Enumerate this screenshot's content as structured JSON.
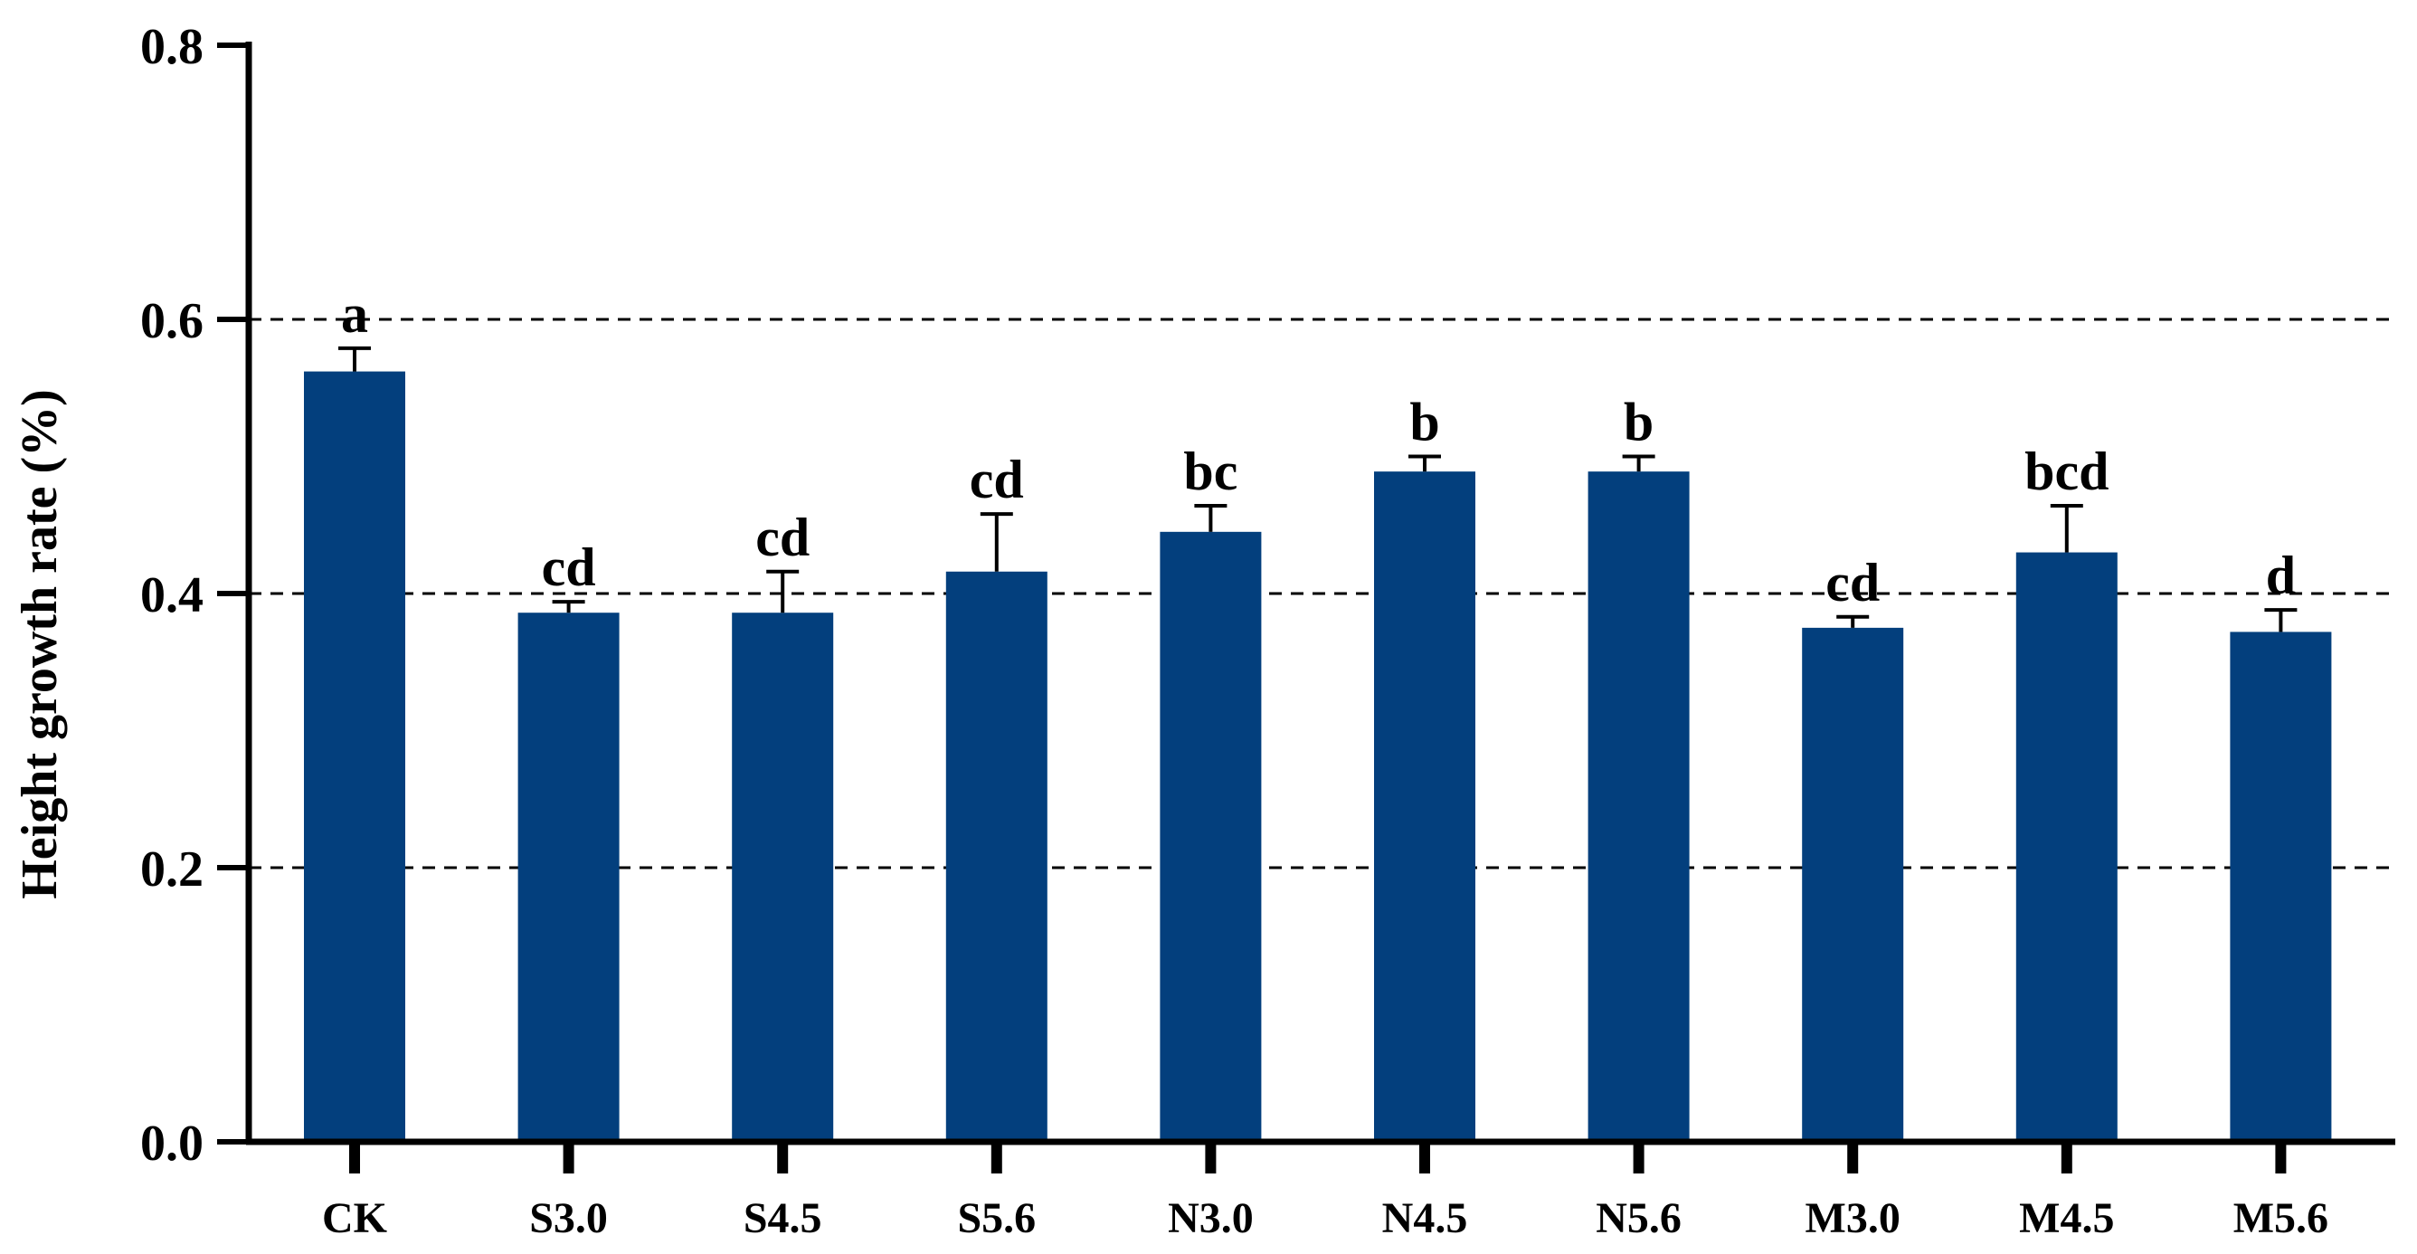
{
  "chart_data": {
    "type": "bar",
    "title": "",
    "xlabel": "",
    "ylabel": "Height growth rate (%)",
    "ylim": [
      0,
      0.8
    ],
    "yticks": [
      "0.0",
      "0.2",
      "0.4",
      "0.6",
      "0.8"
    ],
    "grid": "dashed horizontal lines at 0.2, 0.4, 0.6",
    "bar_color": "#033f7d",
    "categories": [
      "CK",
      "S3.0",
      "S4.5",
      "S5.6",
      "N3.0",
      "N4.5",
      "N5.6",
      "M3.0",
      "M4.5",
      "M5.6"
    ],
    "values": [
      0.562,
      0.386,
      0.386,
      0.416,
      0.445,
      0.489,
      0.489,
      0.375,
      0.43,
      0.372
    ],
    "errors": [
      0.017,
      0.008,
      0.03,
      0.042,
      0.019,
      0.011,
      0.011,
      0.008,
      0.034,
      0.016
    ],
    "significance_letters": [
      "a",
      "cd",
      "cd",
      "cd",
      "bc",
      "b",
      "b",
      "cd",
      "bcd",
      "d"
    ]
  }
}
